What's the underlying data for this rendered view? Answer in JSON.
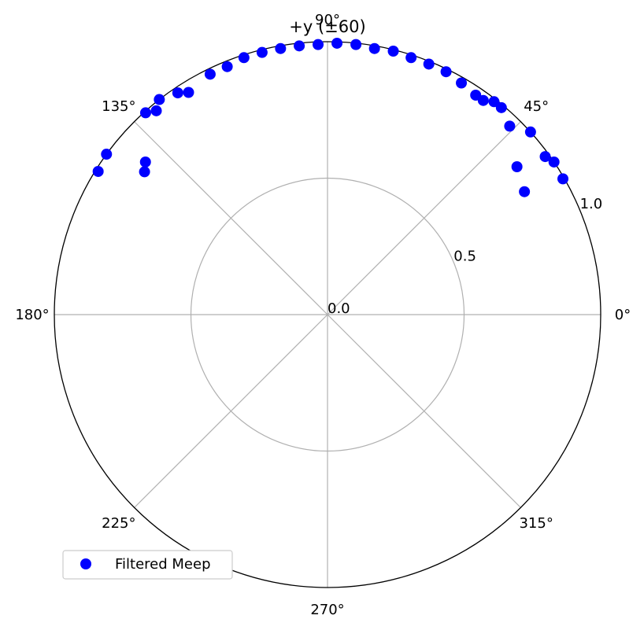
{
  "chart_data": {
    "type": "scatter",
    "projection": "polar",
    "title": "+y (±60)",
    "theta_unit": "degrees",
    "theta_ticks": [
      "0°",
      "45°",
      "90°",
      "135°",
      "180°",
      "225°",
      "270°",
      "315°"
    ],
    "r_ticks": [
      "0.0",
      "0.5",
      "1.0"
    ],
    "r_range": [
      0,
      1.0
    ],
    "grid": true,
    "legend_position": "lower-left",
    "series": [
      {
        "name": "Filtered Meep",
        "color": "#0000ff",
        "points": [
          {
            "theta": 30.0,
            "r": 0.995
          },
          {
            "theta": 32.0,
            "r": 0.85
          },
          {
            "theta": 34.0,
            "r": 1.0
          },
          {
            "theta": 36.0,
            "r": 0.985
          },
          {
            "theta": 38.0,
            "r": 0.88
          },
          {
            "theta": 42.0,
            "r": 1.0
          },
          {
            "theta": 46.0,
            "r": 0.96
          },
          {
            "theta": 50.0,
            "r": 0.99
          },
          {
            "theta": 52.0,
            "r": 0.99
          },
          {
            "theta": 54.0,
            "r": 0.97
          },
          {
            "theta": 56.0,
            "r": 0.97
          },
          {
            "theta": 60.0,
            "r": 0.98
          },
          {
            "theta": 64.0,
            "r": 0.99
          },
          {
            "theta": 68.0,
            "r": 0.99
          },
          {
            "theta": 72.0,
            "r": 0.99
          },
          {
            "theta": 76.0,
            "r": 0.995
          },
          {
            "theta": 80.0,
            "r": 0.99
          },
          {
            "theta": 84.0,
            "r": 0.995
          },
          {
            "theta": 88.0,
            "r": 0.995
          },
          {
            "theta": 92.0,
            "r": 0.99
          },
          {
            "theta": 96.0,
            "r": 0.99
          },
          {
            "theta": 100.0,
            "r": 0.99
          },
          {
            "theta": 104.0,
            "r": 0.99
          },
          {
            "theta": 108.0,
            "r": 0.99
          },
          {
            "theta": 112.0,
            "r": 0.98
          },
          {
            "theta": 116.0,
            "r": 0.98
          },
          {
            "theta": 122.0,
            "r": 0.96
          },
          {
            "theta": 124.0,
            "r": 0.98
          },
          {
            "theta": 128.0,
            "r": 1.0
          },
          {
            "theta": 130.0,
            "r": 0.975
          },
          {
            "theta": 132.0,
            "r": 0.995
          },
          {
            "theta": 140.0,
            "r": 0.87
          },
          {
            "theta": 142.0,
            "r": 0.85
          },
          {
            "theta": 144.0,
            "r": 1.0
          },
          {
            "theta": 148.0,
            "r": 0.99
          }
        ]
      }
    ]
  }
}
